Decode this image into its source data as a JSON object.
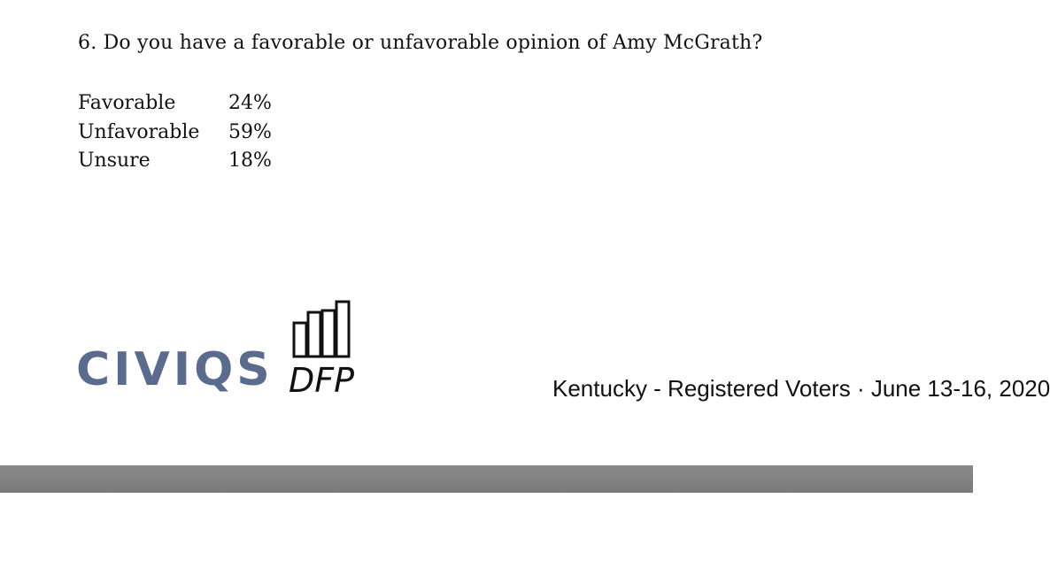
{
  "question": {
    "text": "6. Do you have a favorable or unfavorable opinion of Amy McGrath?"
  },
  "results": [
    {
      "label": "Favorable",
      "value": "24%"
    },
    {
      "label": "Unfavorable",
      "value": "59%"
    },
    {
      "label": "Unsure",
      "value": "18%"
    }
  ],
  "logos": {
    "civiqs": "CIVIQS",
    "dfp": "DFP"
  },
  "footer": {
    "text": "Kentucky - Registered Voters · June 13-16, 2020"
  },
  "colors": {
    "civiqs_brand": "#5b6b8e",
    "divider_bar": "#808080"
  }
}
